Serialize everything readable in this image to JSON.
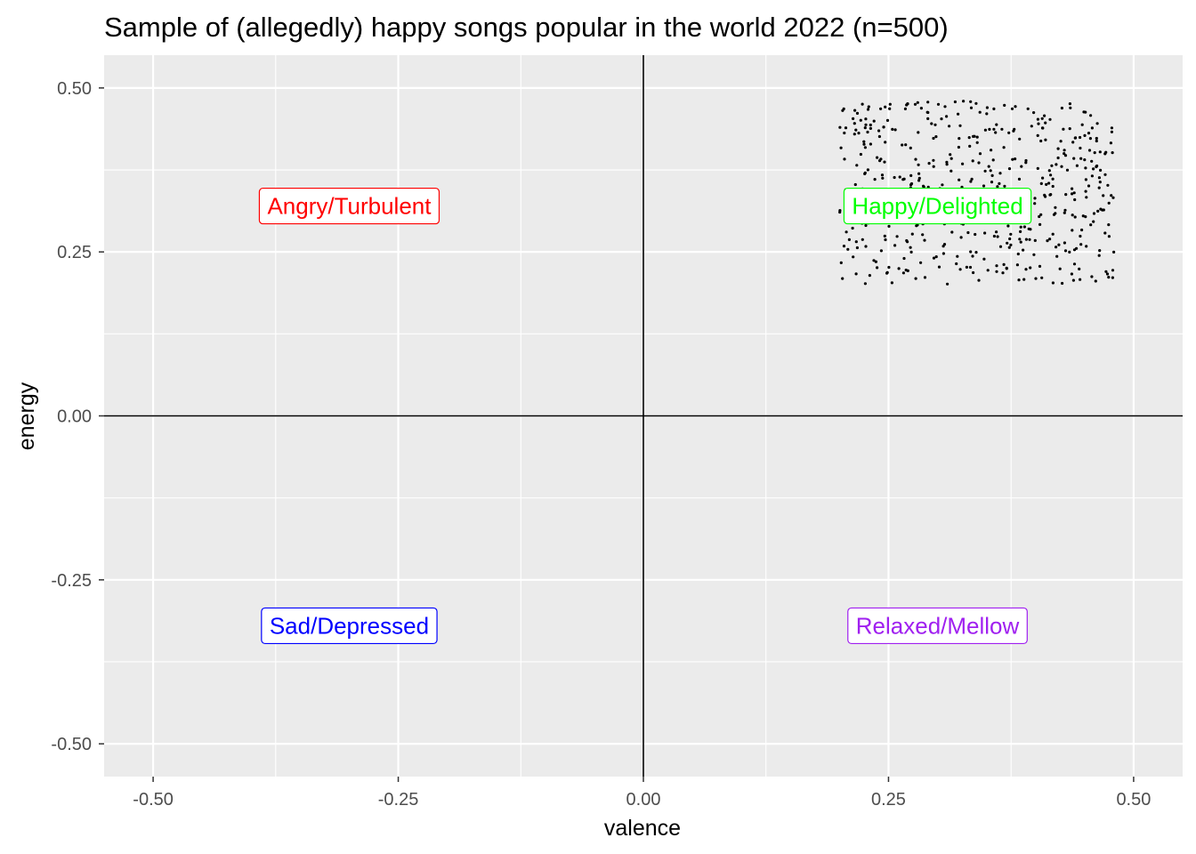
{
  "chart_data": {
    "type": "scatter",
    "title": "Sample of (allegedly) happy songs popular in the world 2022 (n=500)",
    "xlabel": "valence",
    "ylabel": "energy",
    "xlim": [
      -0.55,
      0.55
    ],
    "ylim": [
      -0.55,
      0.55
    ],
    "x_ticks": [
      -0.5,
      -0.25,
      0,
      0.25,
      0.5
    ],
    "x_tick_labels": [
      "-0.50",
      "-0.25",
      "0.00",
      "0.25",
      "0.50"
    ],
    "y_ticks": [
      0.5,
      0.25,
      0,
      -0.25,
      -0.5
    ],
    "y_tick_labels": [
      "0.50",
      "0.25",
      "0.00",
      "-0.25",
      "-0.50"
    ],
    "grid": true,
    "reference_lines": {
      "x": 0,
      "y": 0
    },
    "scatter_region": {
      "x_range": [
        0.2,
        0.48
      ],
      "y_range": [
        0.2,
        0.48
      ],
      "n_points": 500
    },
    "quadrant_labels": [
      {
        "text": "Angry/Turbulent",
        "x": -0.3,
        "y": 0.32,
        "color": "#ff0000"
      },
      {
        "text": "Happy/Delighted",
        "x": 0.3,
        "y": 0.32,
        "color": "#00ff00"
      },
      {
        "text": "Sad/Depressed",
        "x": -0.3,
        "y": -0.32,
        "color": "#0000ff"
      },
      {
        "text": "Relaxed/Mellow",
        "x": 0.3,
        "y": -0.32,
        "color": "#a020f0"
      }
    ],
    "colors": {
      "panel": "#ebebeb",
      "grid": "#ffffff",
      "points": "#000000",
      "reference_lines": "#000000"
    }
  }
}
